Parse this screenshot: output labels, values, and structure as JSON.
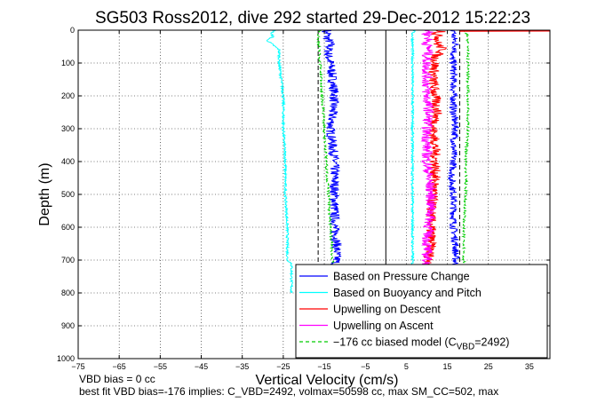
{
  "chart_data": {
    "type": "line",
    "title": "SG503 Ross2012, dive 292 started 29-Dec-2012 15:22:23",
    "xlabel": "Vertical Velocity (cm/s)",
    "ylabel": "Depth (m)",
    "xlim": [
      -75,
      40
    ],
    "ylim": [
      1000,
      0
    ],
    "y_reversed": true,
    "xticks": [
      -75,
      -65,
      -55,
      -45,
      -35,
      -25,
      -15,
      -5,
      5,
      15,
      25,
      35
    ],
    "xtick_labels": [
      "−75",
      "−65",
      "−55",
      "−45",
      "−35",
      "−25",
      "−15",
      "−5",
      "5",
      "15",
      "25",
      "35"
    ],
    "yticks": [
      0,
      100,
      200,
      300,
      400,
      500,
      600,
      700,
      800,
      900,
      1000
    ],
    "ytick_labels": [
      "0",
      "100",
      "200",
      "300",
      "400",
      "500",
      "600",
      "700",
      "800",
      "900",
      "1000"
    ],
    "grid": true,
    "legend_position": "bottom-right",
    "reference_lines": [
      {
        "x": 0,
        "style": "solid",
        "color": "#000000"
      },
      {
        "x": -16.5,
        "style": "dashed",
        "color": "#000000"
      },
      {
        "x": 18,
        "style": "dashed",
        "color": "#000000"
      }
    ],
    "series": [
      {
        "name": "Based on Pressure Change",
        "color": "#0000ff",
        "style": "solid",
        "noise": 1.2,
        "depth": [
          0,
          5,
          10,
          20,
          40,
          60,
          80,
          100,
          150,
          200,
          250,
          300,
          350,
          400,
          450,
          500,
          550,
          600,
          650,
          700,
          720
        ],
        "velocity": [
          -14,
          -15,
          -14,
          -14.5,
          -13.5,
          -14,
          -14,
          -13.5,
          -13,
          -12.5,
          -13,
          -13.5,
          -13,
          -12.5,
          -12.5,
          -12.5,
          -12.5,
          -12.5,
          -12,
          -12,
          -12.5
        ]
      },
      {
        "name": "Based on Pressure Change",
        "color": "#0000ff",
        "style": "solid",
        "noise": 0.9,
        "depth": [
          0,
          5,
          10,
          20,
          40,
          60,
          80,
          100,
          150,
          200,
          250,
          300,
          350,
          400,
          450,
          500,
          550,
          600,
          650,
          700,
          720
        ],
        "velocity": [
          16,
          17,
          16.5,
          16.5,
          17,
          17,
          16,
          16.5,
          16.5,
          16.5,
          16.5,
          17,
          16.5,
          16.5,
          16,
          16.5,
          16.5,
          16.5,
          17,
          17,
          17
        ]
      },
      {
        "name": "Based on Buoyancy and Pitch",
        "color": "#00ffff",
        "style": "solid",
        "noise": 0.3,
        "depth": [
          0,
          10,
          20,
          30,
          40,
          50,
          60,
          100,
          150,
          200,
          300,
          400,
          500,
          600,
          650,
          700,
          710,
          740,
          760,
          780,
          800
        ],
        "velocity": [
          -27,
          -28,
          -27.5,
          -29,
          -28,
          -27,
          -26,
          -26,
          -25.5,
          -25,
          -25,
          -24.5,
          -24.5,
          -24,
          -24,
          -24,
          -23,
          -23,
          -23,
          -23,
          -23
        ]
      },
      {
        "name": "Based on Buoyancy and Pitch",
        "color": "#00ffff",
        "style": "solid",
        "noise": 0.3,
        "depth": [
          0,
          10,
          20,
          50,
          100,
          200,
          300,
          400,
          500,
          600,
          700,
          720
        ],
        "velocity": [
          7,
          6.5,
          6.5,
          6.5,
          6.5,
          6.5,
          6.5,
          6.5,
          6.5,
          6.5,
          6.5,
          6.5
        ]
      },
      {
        "name": "Upwelling on Descent",
        "color": "#ff0000",
        "style": "solid",
        "noise": 1.3,
        "depth": [
          0,
          5,
          10,
          20,
          40,
          60,
          80,
          100,
          150,
          200,
          250,
          300,
          350,
          400,
          450,
          500,
          550,
          600,
          650,
          700,
          720
        ],
        "velocity": [
          13,
          14,
          12,
          13,
          12.5,
          14,
          12,
          12,
          11.5,
          12,
          12.5,
          11.5,
          12,
          12,
          12,
          11.5,
          11,
          11,
          11,
          10.5,
          11
        ]
      },
      {
        "name": "Upwelling on Ascent",
        "color": "#ff00ff",
        "style": "solid",
        "noise": 1.3,
        "depth": [
          0,
          5,
          10,
          20,
          40,
          60,
          80,
          100,
          150,
          200,
          250,
          300,
          350,
          400,
          450,
          500,
          550,
          600,
          650,
          700,
          720
        ],
        "velocity": [
          10,
          11,
          10,
          10.5,
          10,
          10.5,
          10,
          10,
          10,
          10,
          10.5,
          10,
          10,
          10,
          10.5,
          11,
          11,
          10.5,
          10,
          10,
          10
        ]
      },
      {
        "name": "−176 cc biased model (C_VBD=2492)",
        "color": "#00cc00",
        "style": "dashed",
        "noise": 0.3,
        "depth": [
          0,
          20,
          100,
          200,
          300,
          400,
          500,
          600,
          700,
          720
        ],
        "velocity": [
          -16,
          -16.5,
          -16,
          -15.5,
          -15,
          -14.5,
          -14,
          -13.5,
          -13,
          -13
        ]
      },
      {
        "name": "−176 cc biased model (C_VBD=2492)",
        "color": "#00cc00",
        "style": "dashed",
        "noise": 0.3,
        "depth": [
          0,
          20,
          100,
          200,
          300,
          400,
          500,
          600,
          700,
          720
        ],
        "velocity": [
          19,
          20,
          20,
          20,
          20,
          19.5,
          19.5,
          19,
          19,
          19
        ]
      }
    ],
    "surface_spike": {
      "color": "#ff0000",
      "depth": [
        0,
        2
      ],
      "velocity": [
        18,
        40
      ]
    }
  },
  "legend": {
    "items": [
      {
        "label": "Based on Pressure Change",
        "color": "#0000ff",
        "dashed": false
      },
      {
        "label": "Based on Buoyancy and Pitch",
        "color": "#00ffff",
        "dashed": false
      },
      {
        "label": "Upwelling on Descent",
        "color": "#ff0000",
        "dashed": false
      },
      {
        "label": "Upwelling on Ascent",
        "color": "#ff00ff",
        "dashed": false
      },
      {
        "label": "−176 cc biased model (C",
        "color": "#00cc00",
        "dashed": true,
        "subscript": "VBD",
        "suffix": "=2492)"
      }
    ]
  },
  "notes": {
    "line1": "VBD bias = 0 cc",
    "line2": "best fit VBD bias=-176 implies: C_VBD=2492, volmax=50598 cc, max SM_CC=502, max"
  }
}
